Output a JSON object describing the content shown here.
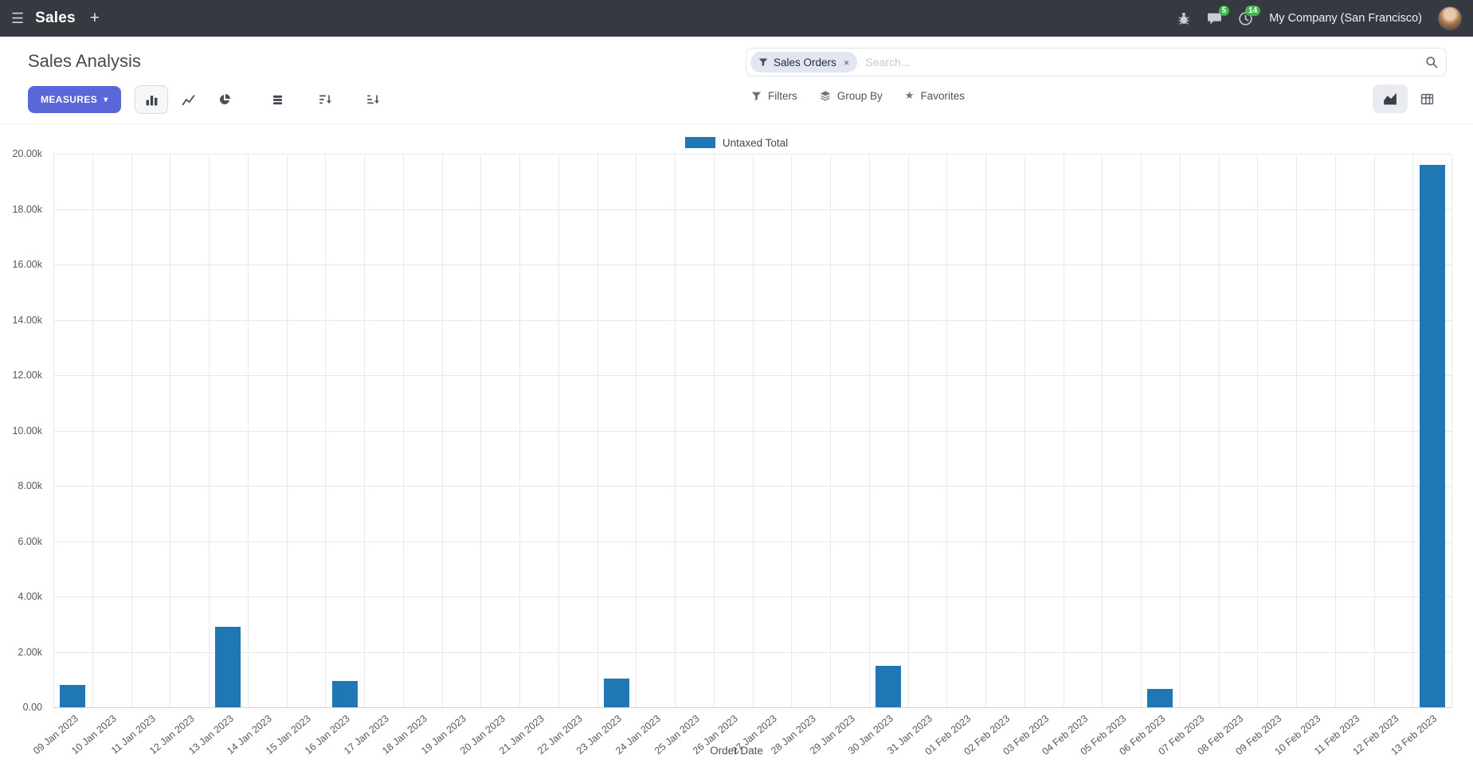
{
  "navbar": {
    "app_name": "Sales",
    "company": "My Company (San Francisco)",
    "message_badge": "5",
    "activity_badge": "14"
  },
  "icons": {
    "hamburger": "☰",
    "plus": "+",
    "caret_down": "▾",
    "close": "×",
    "star": "★"
  },
  "control_panel": {
    "title": "Sales Analysis",
    "measures_label": "MEASURES",
    "filters_label": "Filters",
    "group_by_label": "Group By",
    "favorites_label": "Favorites",
    "search": {
      "facet_label": "Sales Orders",
      "placeholder": "Search..."
    }
  },
  "colors": {
    "bar": "#1f77b4",
    "primary_button": "#5a67d8",
    "badge": "#42b64a",
    "navbar_bg": "#343a40"
  },
  "chart_data": {
    "type": "bar",
    "title": "",
    "xlabel": "Order Date",
    "ylabel": "",
    "legend_position": "top",
    "grid": true,
    "ylim": [
      0,
      20000
    ],
    "ytick_step": 2000,
    "ytick_labels": [
      "0.00",
      "2.00k",
      "4.00k",
      "6.00k",
      "8.00k",
      "10.00k",
      "12.00k",
      "14.00k",
      "16.00k",
      "18.00k",
      "20.00k"
    ],
    "bar_color": "#1f77b4",
    "categories": [
      "09 Jan 2023",
      "10 Jan 2023",
      "11 Jan 2023",
      "12 Jan 2023",
      "13 Jan 2023",
      "14 Jan 2023",
      "15 Jan 2023",
      "16 Jan 2023",
      "17 Jan 2023",
      "18 Jan 2023",
      "19 Jan 2023",
      "20 Jan 2023",
      "21 Jan 2023",
      "22 Jan 2023",
      "23 Jan 2023",
      "24 Jan 2023",
      "25 Jan 2023",
      "26 Jan 2023",
      "27 Jan 2023",
      "28 Jan 2023",
      "29 Jan 2023",
      "30 Jan 2023",
      "31 Jan 2023",
      "01 Feb 2023",
      "02 Feb 2023",
      "03 Feb 2023",
      "04 Feb 2023",
      "05 Feb 2023",
      "06 Feb 2023",
      "07 Feb 2023",
      "08 Feb 2023",
      "09 Feb 2023",
      "10 Feb 2023",
      "11 Feb 2023",
      "12 Feb 2023",
      "13 Feb 2023"
    ],
    "series": [
      {
        "name": "Untaxed Total",
        "values": [
          800,
          0,
          0,
          0,
          2900,
          0,
          0,
          950,
          0,
          0,
          0,
          0,
          0,
          0,
          1050,
          0,
          0,
          0,
          0,
          0,
          0,
          1500,
          0,
          0,
          0,
          0,
          0,
          0,
          650,
          0,
          0,
          0,
          0,
          0,
          0,
          19600
        ]
      }
    ]
  }
}
